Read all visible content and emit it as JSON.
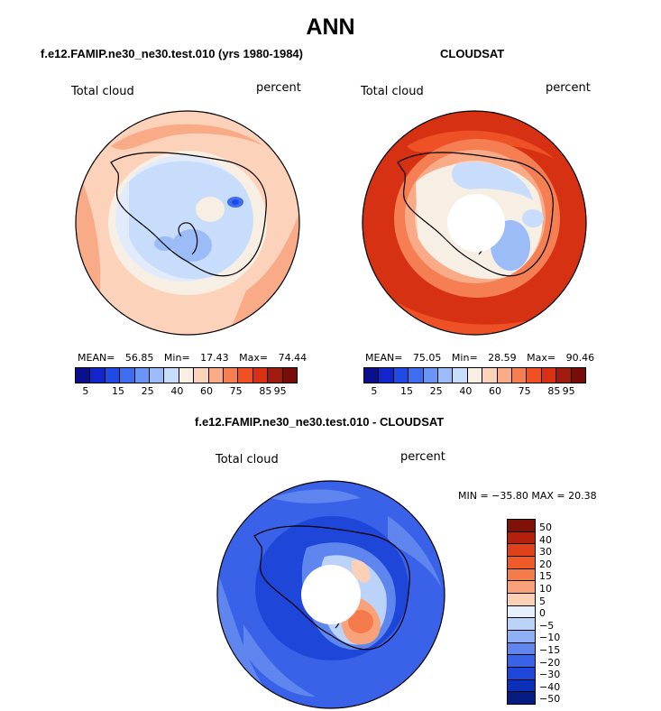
{
  "main_title": "ANN",
  "colors": {
    "model_palette": [
      "#0a0f8c",
      "#1026c8",
      "#1f4ae4",
      "#3d6ef0",
      "#6b95f5",
      "#9cbcf8",
      "#c8dcfb",
      "#f8efe4",
      "#fcd2bb",
      "#f9aa87",
      "#f57e53",
      "#ee5126",
      "#d73114",
      "#a11a0e",
      "#780c08"
    ],
    "diff_palette": [
      "#7f1208",
      "#b3200c",
      "#e0401a",
      "#f05a28",
      "#f57a4c",
      "#f9a27a",
      "#fcd0b6",
      "#e6f0fc",
      "#bcd3f9",
      "#8fb0f5",
      "#5f86ef",
      "#3a62e8",
      "#1e46d8",
      "#0a2fb8",
      "#061c82"
    ]
  },
  "chart_data": [
    {
      "type": "heatmap",
      "title": "f.e12.FAMIP.ne30_ne30.test.010 (yrs 1980-1984)",
      "variable": "Total cloud",
      "units": "percent",
      "stats": {
        "mean_label": "MEAN=",
        "mean": "56.85",
        "min_label": "Min=",
        "min": "17.43",
        "max_label": "Max=",
        "max": "74.44"
      },
      "colorbar_ticks": [
        "5",
        "15",
        "25",
        "40",
        "60",
        "75",
        "85",
        "95"
      ]
    },
    {
      "type": "heatmap",
      "title": "CLOUDSAT",
      "variable": "Total cloud",
      "units": "percent",
      "stats": {
        "mean_label": "MEAN=",
        "mean": "75.05",
        "min_label": "Min=",
        "min": "28.59",
        "max_label": "Max=",
        "max": "90.46"
      },
      "colorbar_ticks": [
        "5",
        "15",
        "25",
        "40",
        "60",
        "75",
        "85",
        "95"
      ]
    },
    {
      "type": "heatmap",
      "title": "f.e12.FAMIP.ne30_ne30.test.010 - CLOUDSAT",
      "variable": "Total cloud",
      "units": "percent",
      "stats_text": "MIN = −35.80 MAX =  20.38",
      "colorbar_ticks": [
        "50",
        "40",
        "30",
        "20",
        "15",
        "10",
        "5",
        "0",
        "−5",
        "−10",
        "−15",
        "−20",
        "−30",
        "−40",
        "−50"
      ]
    }
  ]
}
